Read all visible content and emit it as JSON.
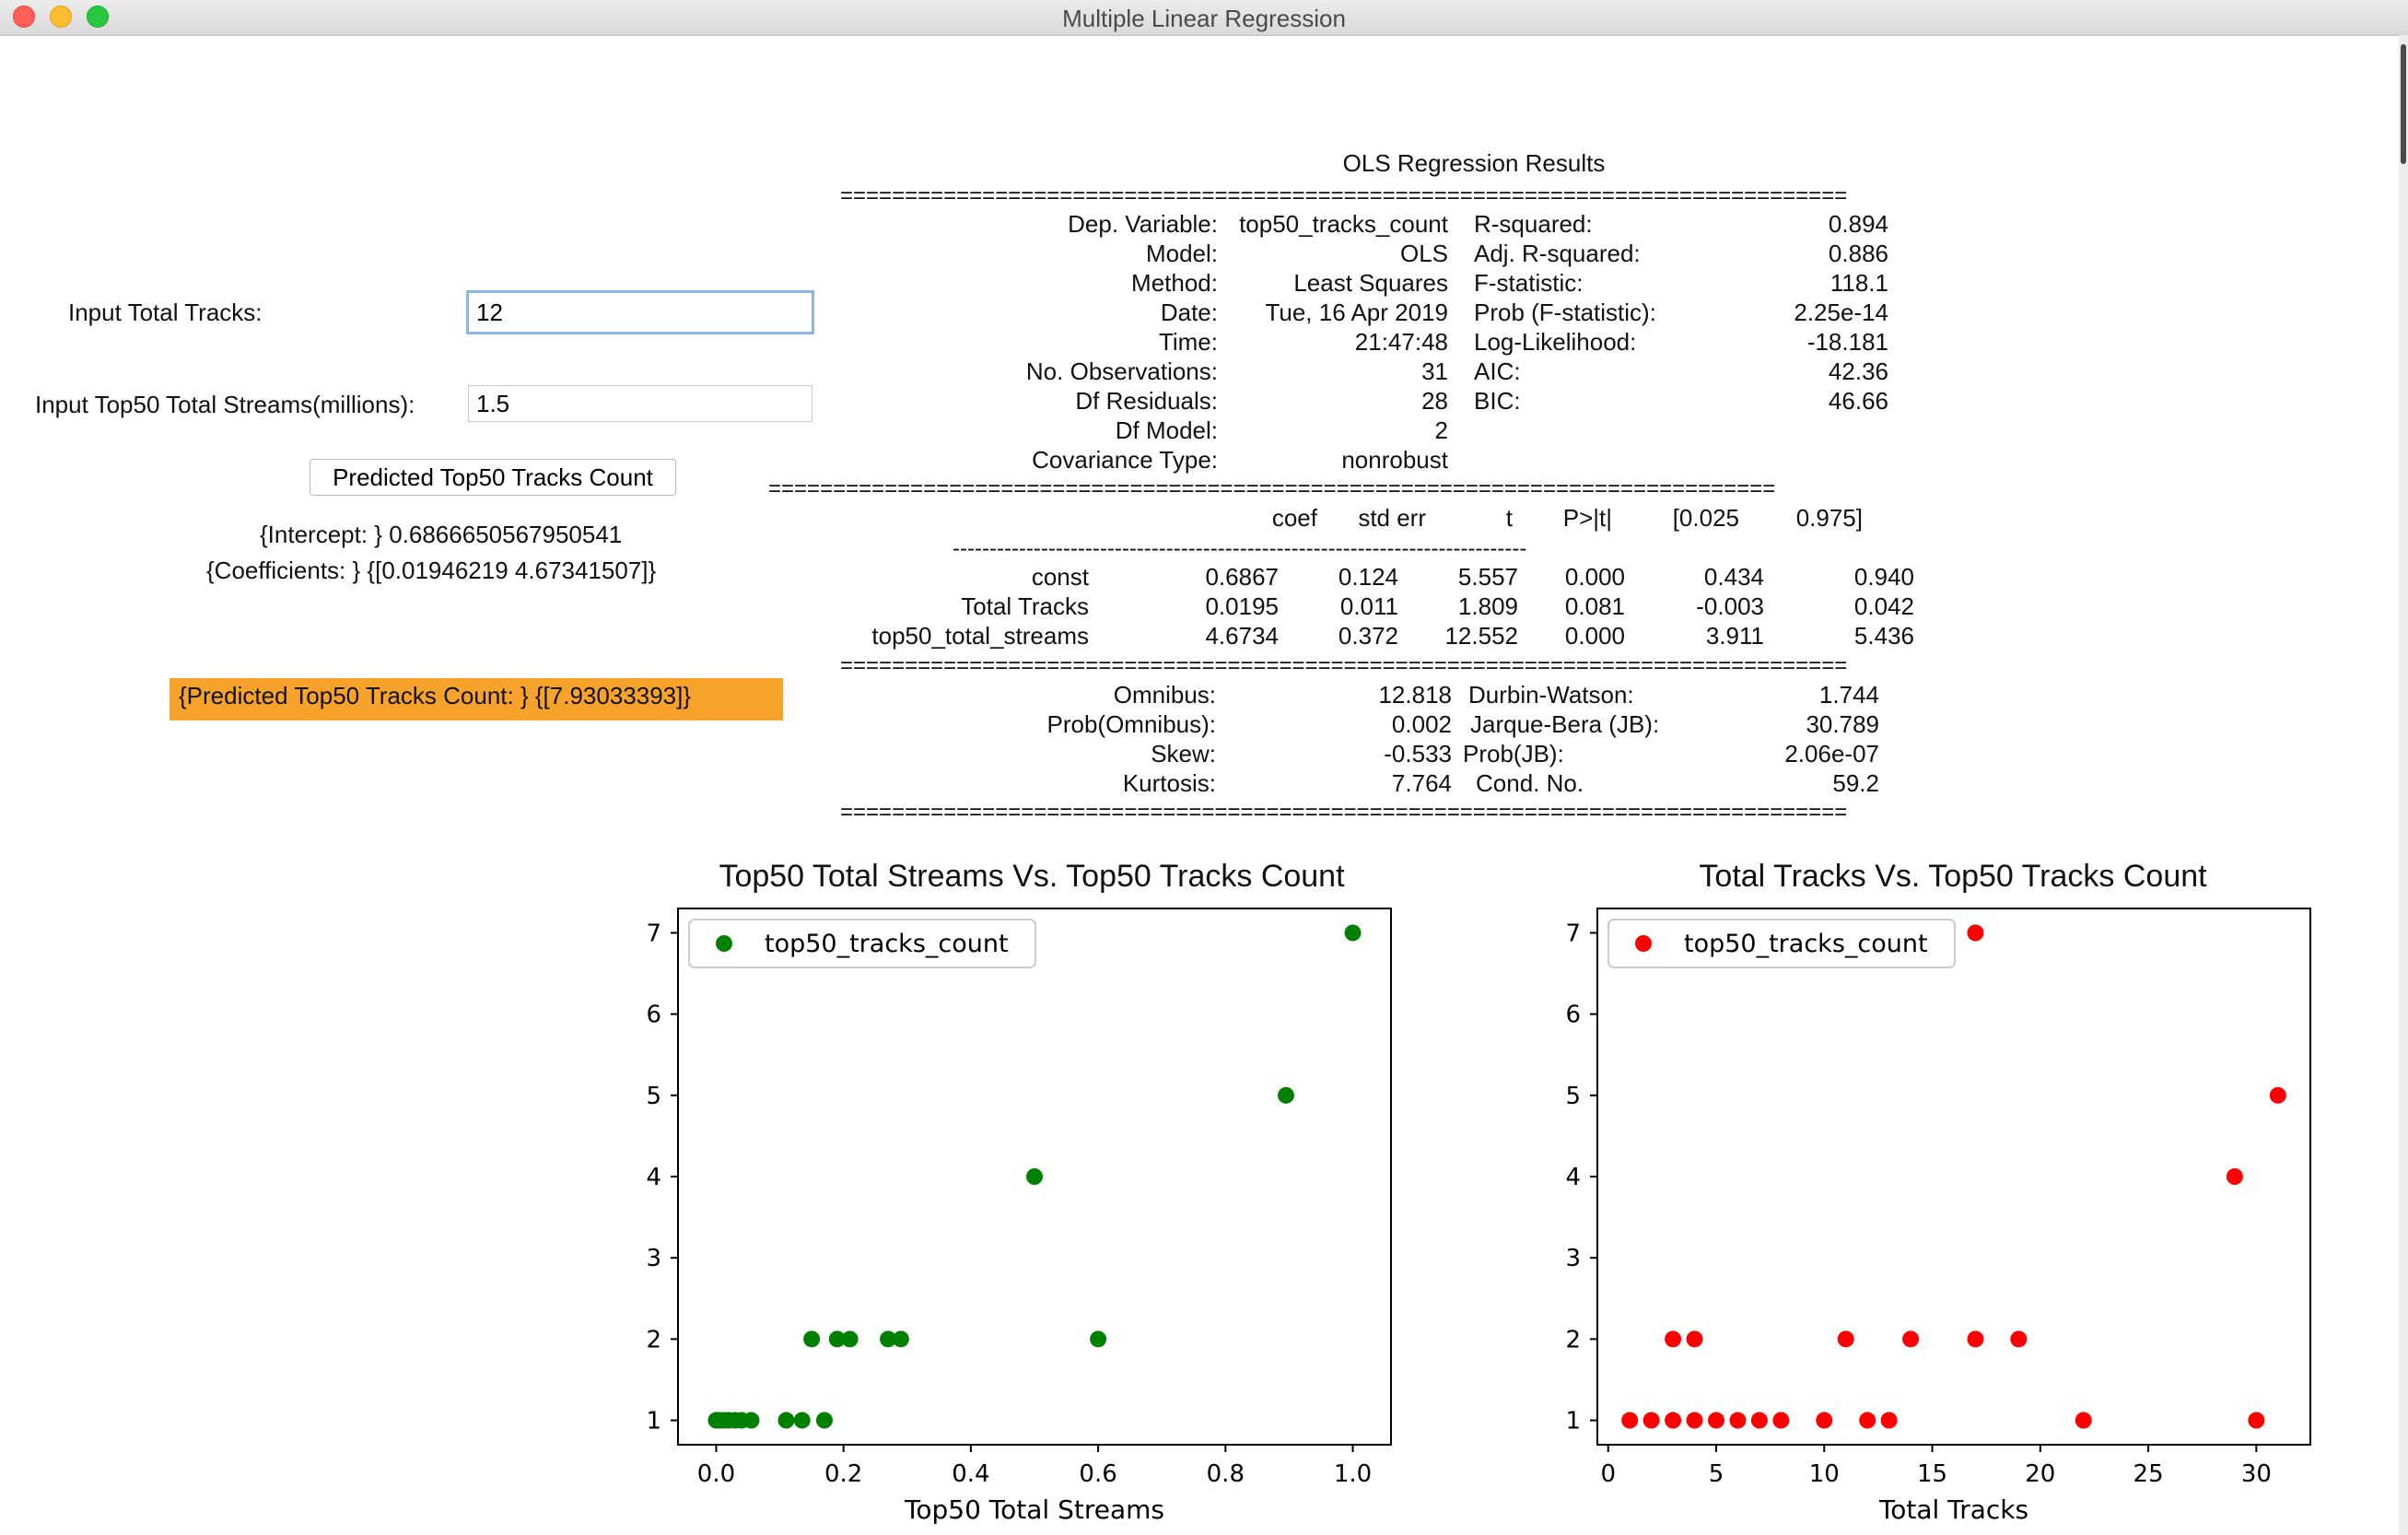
{
  "window": {
    "title": "Multiple Linear Regression"
  },
  "inputs": {
    "total_tracks_label": "Input Total Tracks:",
    "total_tracks_value": "12",
    "streams_label": "Input Top50 Total Streams(millions):",
    "streams_value": "1.5",
    "predict_button": "Predicted Top50 Tracks Count",
    "intercept_text": "{Intercept: } 0.6866650567950541",
    "coefficients_text": "{Coefficients: } {[0.01946219 4.67341507]}",
    "prediction_text": "{Predicted Top50 Tracks Count: } {[7.93033393]}"
  },
  "ols": {
    "title": "OLS Regression Results",
    "separator": "==============================================================================",
    "dashes": "------------------------------------------------------------------------------",
    "top_left": [
      [
        "Dep. Variable:",
        "top50_tracks_count"
      ],
      [
        "Model:",
        "OLS"
      ],
      [
        "Method:",
        "Least Squares"
      ],
      [
        "Date:",
        "Tue, 16 Apr 2019"
      ],
      [
        "Time:",
        "21:47:48"
      ],
      [
        "No. Observations:",
        "31"
      ],
      [
        "Df Residuals:",
        "28"
      ],
      [
        "Df Model:",
        "2"
      ],
      [
        "Covariance Type:",
        "nonrobust"
      ]
    ],
    "top_right": [
      [
        "R-squared:",
        "0.894"
      ],
      [
        "Adj. R-squared:",
        "0.886"
      ],
      [
        "F-statistic:",
        "118.1"
      ],
      [
        "Prob (F-statistic):",
        "2.25e-14"
      ],
      [
        "Log-Likelihood:",
        "-18.181"
      ],
      [
        "AIC:",
        "42.36"
      ],
      [
        "BIC:",
        "46.66"
      ]
    ],
    "coef_header": [
      "coef",
      "std err",
      "t",
      "P>|t|",
      "[0.025",
      "0.975]"
    ],
    "coef_rows": [
      [
        "const",
        "0.6867",
        "0.124",
        "5.557",
        "0.000",
        "0.434",
        "0.940"
      ],
      [
        "Total Tracks",
        "0.0195",
        "0.011",
        "1.809",
        "0.081",
        "-0.003",
        "0.042"
      ],
      [
        "top50_total_streams",
        "4.6734",
        "0.372",
        "12.552",
        "0.000",
        "3.911",
        "5.436"
      ]
    ],
    "bottom_left": [
      [
        "Omnibus:",
        "12.818"
      ],
      [
        "Prob(Omnibus):",
        "0.002"
      ],
      [
        "Skew:",
        "-0.533"
      ],
      [
        "Kurtosis:",
        "7.764"
      ]
    ],
    "bottom_right": [
      [
        "Durbin-Watson:",
        "1.744"
      ],
      [
        "Jarque-Bera (JB):",
        "30.789"
      ],
      [
        "Prob(JB):",
        "2.06e-07"
      ],
      [
        "Cond. No.",
        "59.2"
      ]
    ]
  },
  "chart_data": [
    {
      "type": "scatter",
      "title": "Top50 Total Streams Vs. Top50 Tracks Count",
      "xlabel": "Top50 Total Streams",
      "ylabel": "",
      "legend": "top50_tracks_count",
      "legend_position": "top-left",
      "color": "#008000",
      "xlim": [
        -0.06,
        1.06
      ],
      "ylim": [
        0.7,
        7.3
      ],
      "xticks": [
        0.0,
        0.2,
        0.4,
        0.6,
        0.8,
        1.0
      ],
      "xtick_labels": [
        "0.0",
        "0.2",
        "0.4",
        "0.6",
        "0.8",
        "1.0"
      ],
      "yticks": [
        1,
        2,
        3,
        4,
        5,
        6,
        7
      ],
      "grid": false,
      "points": [
        {
          "x": 0.0,
          "y": 1
        },
        {
          "x": 0.005,
          "y": 1
        },
        {
          "x": 0.012,
          "y": 1
        },
        {
          "x": 0.02,
          "y": 1
        },
        {
          "x": 0.03,
          "y": 1
        },
        {
          "x": 0.04,
          "y": 1
        },
        {
          "x": 0.055,
          "y": 1
        },
        {
          "x": 0.11,
          "y": 1
        },
        {
          "x": 0.135,
          "y": 1
        },
        {
          "x": 0.17,
          "y": 1
        },
        {
          "x": 0.15,
          "y": 2
        },
        {
          "x": 0.19,
          "y": 2
        },
        {
          "x": 0.21,
          "y": 2
        },
        {
          "x": 0.27,
          "y": 2
        },
        {
          "x": 0.29,
          "y": 2
        },
        {
          "x": 0.6,
          "y": 2
        },
        {
          "x": 0.5,
          "y": 4
        },
        {
          "x": 0.895,
          "y": 5
        },
        {
          "x": 1.0,
          "y": 7
        }
      ]
    },
    {
      "type": "scatter",
      "title": "Total Tracks Vs. Top50 Tracks Count",
      "xlabel": "Total Tracks",
      "ylabel": "",
      "legend": "top50_tracks_count",
      "legend_position": "top-left",
      "color": "#ff0000",
      "xlim": [
        -0.5,
        32.5
      ],
      "ylim": [
        0.7,
        7.3
      ],
      "xticks": [
        0,
        5,
        10,
        15,
        20,
        25,
        30
      ],
      "xtick_labels": [
        "0",
        "5",
        "10",
        "15",
        "20",
        "25",
        "30"
      ],
      "yticks": [
        1,
        2,
        3,
        4,
        5,
        6,
        7
      ],
      "grid": false,
      "points": [
        {
          "x": 1,
          "y": 1
        },
        {
          "x": 2,
          "y": 1
        },
        {
          "x": 3,
          "y": 1
        },
        {
          "x": 4,
          "y": 1
        },
        {
          "x": 5,
          "y": 1
        },
        {
          "x": 6,
          "y": 1
        },
        {
          "x": 7,
          "y": 1
        },
        {
          "x": 8,
          "y": 1
        },
        {
          "x": 10,
          "y": 1
        },
        {
          "x": 12,
          "y": 1
        },
        {
          "x": 13,
          "y": 1
        },
        {
          "x": 22,
          "y": 1
        },
        {
          "x": 30,
          "y": 1
        },
        {
          "x": 3,
          "y": 2
        },
        {
          "x": 4,
          "y": 2
        },
        {
          "x": 11,
          "y": 2
        },
        {
          "x": 14,
          "y": 2
        },
        {
          "x": 17,
          "y": 2
        },
        {
          "x": 19,
          "y": 2
        },
        {
          "x": 29,
          "y": 4
        },
        {
          "x": 31,
          "y": 5
        },
        {
          "x": 17,
          "y": 7
        }
      ]
    }
  ]
}
